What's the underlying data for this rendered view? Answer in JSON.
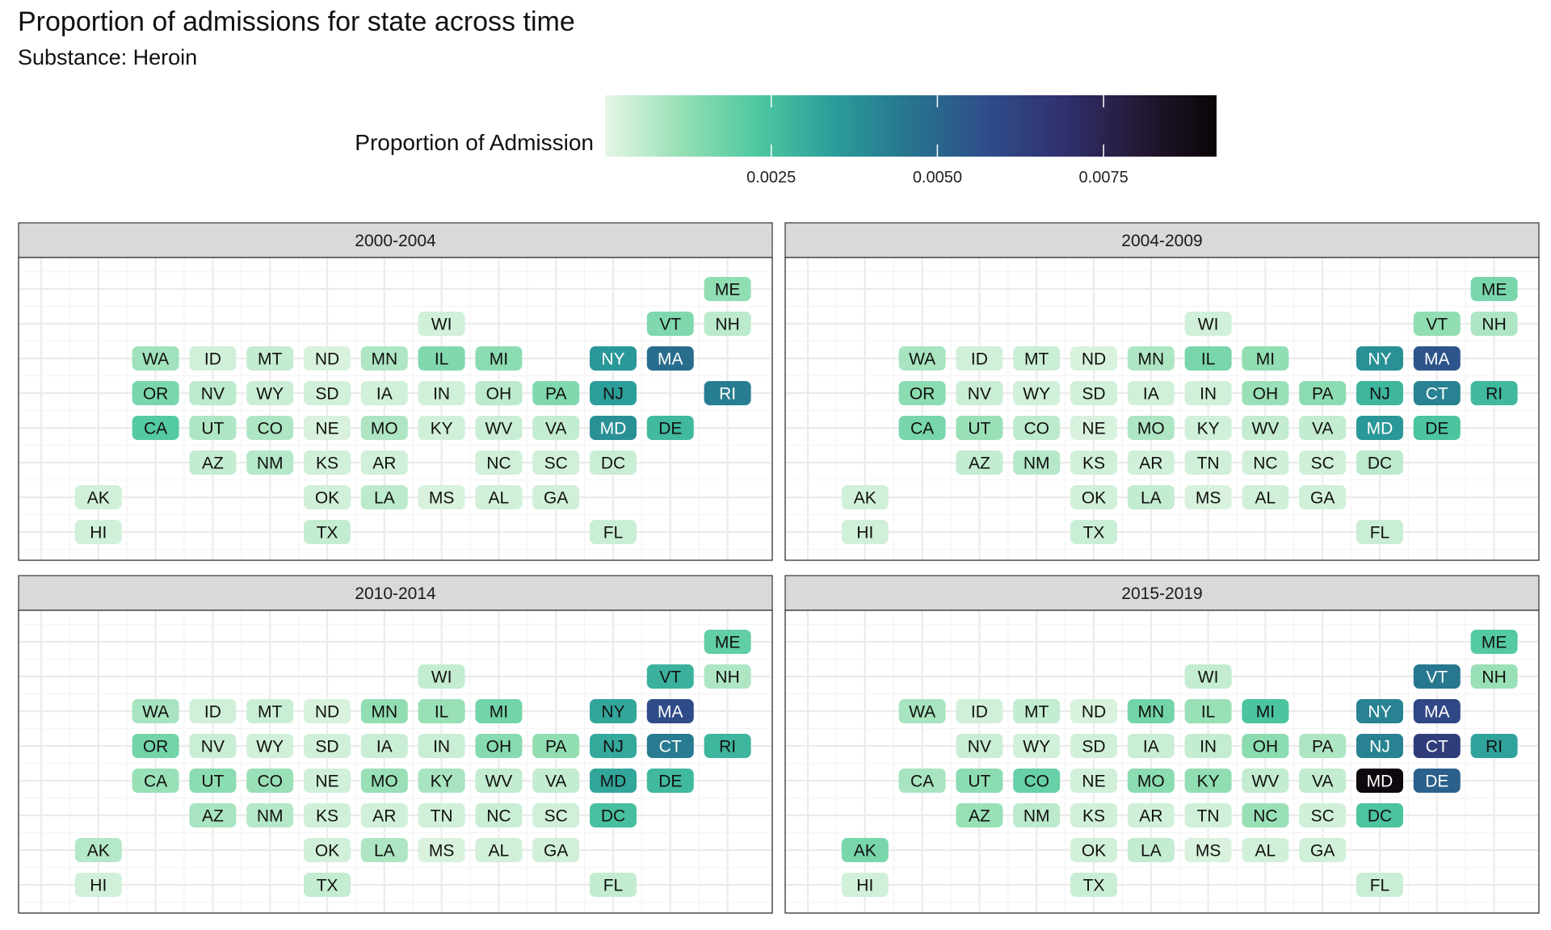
{
  "chart_data": {
    "type": "heatmap",
    "title": "Proportion of admissions for state across time",
    "subtitle": "Substance: Heroin",
    "legend": {
      "title": "Proportion of Admission",
      "position": "top",
      "range": [
        0,
        0.0092
      ],
      "ticks": [
        0.0025,
        0.005,
        0.0075
      ],
      "tick_labels": [
        "0.0025",
        "0.0050",
        "0.0075"
      ],
      "colors": [
        "#e6f6e6",
        "#95dfb4",
        "#4ec8a0",
        "#2a9c9a",
        "#27748e",
        "#2f4d8a",
        "#30306e",
        "#241935",
        "#0b0406"
      ]
    },
    "grid": true,
    "facets": [
      {
        "label": "2000-2004",
        "states": [
          {
            "abbr": "ME",
            "value": 0.0012
          },
          {
            "abbr": "WI",
            "value": 0.0003
          },
          {
            "abbr": "VT",
            "value": 0.0015
          },
          {
            "abbr": "NH",
            "value": 0.0006
          },
          {
            "abbr": "WA",
            "value": 0.001
          },
          {
            "abbr": "ID",
            "value": 0.0003
          },
          {
            "abbr": "MT",
            "value": 0.0005
          },
          {
            "abbr": "ND",
            "value": 0.0002
          },
          {
            "abbr": "MN",
            "value": 0.0008
          },
          {
            "abbr": "IL",
            "value": 0.0015
          },
          {
            "abbr": "MI",
            "value": 0.0013
          },
          {
            "abbr": "NY",
            "value": 0.0036
          },
          {
            "abbr": "MA",
            "value": 0.0048
          },
          {
            "abbr": "OR",
            "value": 0.0016
          },
          {
            "abbr": "NV",
            "value": 0.0006
          },
          {
            "abbr": "WY",
            "value": 0.0004
          },
          {
            "abbr": "SD",
            "value": 0.0003
          },
          {
            "abbr": "IA",
            "value": 0.0003
          },
          {
            "abbr": "IN",
            "value": 0.0003
          },
          {
            "abbr": "OH",
            "value": 0.0006
          },
          {
            "abbr": "PA",
            "value": 0.0015
          },
          {
            "abbr": "NJ",
            "value": 0.0034
          },
          {
            "abbr": "RI",
            "value": 0.0043
          },
          {
            "abbr": "CA",
            "value": 0.0022
          },
          {
            "abbr": "UT",
            "value": 0.0008
          },
          {
            "abbr": "CO",
            "value": 0.0008
          },
          {
            "abbr": "NE",
            "value": 0.0002
          },
          {
            "abbr": "MO",
            "value": 0.0008
          },
          {
            "abbr": "KY",
            "value": 0.0003
          },
          {
            "abbr": "WV",
            "value": 0.0004
          },
          {
            "abbr": "VA",
            "value": 0.0005
          },
          {
            "abbr": "MD",
            "value": 0.0038
          },
          {
            "abbr": "DE",
            "value": 0.0027
          },
          {
            "abbr": "AZ",
            "value": 0.0005
          },
          {
            "abbr": "NM",
            "value": 0.0007
          },
          {
            "abbr": "KS",
            "value": 0.0003
          },
          {
            "abbr": "AR",
            "value": 0.0003
          },
          {
            "abbr": "NC",
            "value": 0.0003
          },
          {
            "abbr": "SC",
            "value": 0.0003
          },
          {
            "abbr": "DC",
            "value": 0.0004
          },
          {
            "abbr": "AK",
            "value": 0.0003
          },
          {
            "abbr": "OK",
            "value": 0.0003
          },
          {
            "abbr": "LA",
            "value": 0.0006
          },
          {
            "abbr": "MS",
            "value": 0.0002
          },
          {
            "abbr": "AL",
            "value": 0.0003
          },
          {
            "abbr": "GA",
            "value": 0.0003
          },
          {
            "abbr": "HI",
            "value": 0.0003
          },
          {
            "abbr": "TX",
            "value": 0.0005
          },
          {
            "abbr": "FL",
            "value": 0.0004
          }
        ]
      },
      {
        "label": "2004-2009",
        "states": [
          {
            "abbr": "ME",
            "value": 0.0016
          },
          {
            "abbr": "WI",
            "value": 0.0003
          },
          {
            "abbr": "VT",
            "value": 0.0012
          },
          {
            "abbr": "NH",
            "value": 0.0008
          },
          {
            "abbr": "WA",
            "value": 0.0009
          },
          {
            "abbr": "ID",
            "value": 0.0003
          },
          {
            "abbr": "MT",
            "value": 0.0004
          },
          {
            "abbr": "ND",
            "value": 0.0002
          },
          {
            "abbr": "MN",
            "value": 0.0008
          },
          {
            "abbr": "IL",
            "value": 0.0016
          },
          {
            "abbr": "MI",
            "value": 0.0012
          },
          {
            "abbr": "NY",
            "value": 0.0038
          },
          {
            "abbr": "MA",
            "value": 0.0055
          },
          {
            "abbr": "OR",
            "value": 0.0013
          },
          {
            "abbr": "NV",
            "value": 0.0004
          },
          {
            "abbr": "WY",
            "value": 0.0003
          },
          {
            "abbr": "SD",
            "value": 0.0003
          },
          {
            "abbr": "IA",
            "value": 0.0003
          },
          {
            "abbr": "IN",
            "value": 0.0003
          },
          {
            "abbr": "OH",
            "value": 0.0011
          },
          {
            "abbr": "PA",
            "value": 0.0013
          },
          {
            "abbr": "NJ",
            "value": 0.0028
          },
          {
            "abbr": "CT",
            "value": 0.0042
          },
          {
            "abbr": "RI",
            "value": 0.0027
          },
          {
            "abbr": "CA",
            "value": 0.0016
          },
          {
            "abbr": "UT",
            "value": 0.0011
          },
          {
            "abbr": "CO",
            "value": 0.0006
          },
          {
            "abbr": "NE",
            "value": 0.0002
          },
          {
            "abbr": "MO",
            "value": 0.0008
          },
          {
            "abbr": "KY",
            "value": 0.0003
          },
          {
            "abbr": "WV",
            "value": 0.0005
          },
          {
            "abbr": "VA",
            "value": 0.0005
          },
          {
            "abbr": "MD",
            "value": 0.0036
          },
          {
            "abbr": "DE",
            "value": 0.0024
          },
          {
            "abbr": "AZ",
            "value": 0.0005
          },
          {
            "abbr": "NM",
            "value": 0.0007
          },
          {
            "abbr": "KS",
            "value": 0.0003
          },
          {
            "abbr": "AR",
            "value": 0.0003
          },
          {
            "abbr": "TN",
            "value": 0.0003
          },
          {
            "abbr": "NC",
            "value": 0.0003
          },
          {
            "abbr": "SC",
            "value": 0.0003
          },
          {
            "abbr": "DC",
            "value": 0.0006
          },
          {
            "abbr": "AK",
            "value": 0.0003
          },
          {
            "abbr": "OK",
            "value": 0.0003
          },
          {
            "abbr": "LA",
            "value": 0.0005
          },
          {
            "abbr": "MS",
            "value": 0.0002
          },
          {
            "abbr": "AL",
            "value": 0.0003
          },
          {
            "abbr": "GA",
            "value": 0.0003
          },
          {
            "abbr": "HI",
            "value": 0.0003
          },
          {
            "abbr": "TX",
            "value": 0.0004
          },
          {
            "abbr": "FL",
            "value": 0.0004
          }
        ]
      },
      {
        "label": "2010-2014",
        "states": [
          {
            "abbr": "ME",
            "value": 0.002
          },
          {
            "abbr": "WI",
            "value": 0.0005
          },
          {
            "abbr": "VT",
            "value": 0.0029
          },
          {
            "abbr": "NH",
            "value": 0.0008
          },
          {
            "abbr": "WA",
            "value": 0.0009
          },
          {
            "abbr": "ID",
            "value": 0.0003
          },
          {
            "abbr": "MT",
            "value": 0.0004
          },
          {
            "abbr": "ND",
            "value": 0.0002
          },
          {
            "abbr": "MN",
            "value": 0.0012
          },
          {
            "abbr": "IL",
            "value": 0.0011
          },
          {
            "abbr": "MI",
            "value": 0.0017
          },
          {
            "abbr": "NY",
            "value": 0.0032
          },
          {
            "abbr": "MA",
            "value": 0.0058
          },
          {
            "abbr": "OR",
            "value": 0.0017
          },
          {
            "abbr": "NV",
            "value": 0.0004
          },
          {
            "abbr": "WY",
            "value": 0.0003
          },
          {
            "abbr": "SD",
            "value": 0.0003
          },
          {
            "abbr": "IA",
            "value": 0.0004
          },
          {
            "abbr": "IN",
            "value": 0.0004
          },
          {
            "abbr": "OH",
            "value": 0.0014
          },
          {
            "abbr": "PA",
            "value": 0.0012
          },
          {
            "abbr": "NJ",
            "value": 0.0031
          },
          {
            "abbr": "CT",
            "value": 0.0044
          },
          {
            "abbr": "RI",
            "value": 0.0028
          },
          {
            "abbr": "CA",
            "value": 0.0011
          },
          {
            "abbr": "UT",
            "value": 0.0013
          },
          {
            "abbr": "CO",
            "value": 0.0011
          },
          {
            "abbr": "NE",
            "value": 0.0003
          },
          {
            "abbr": "MO",
            "value": 0.0011
          },
          {
            "abbr": "KY",
            "value": 0.0009
          },
          {
            "abbr": "WV",
            "value": 0.0005
          },
          {
            "abbr": "VA",
            "value": 0.0005
          },
          {
            "abbr": "MD",
            "value": 0.0032
          },
          {
            "abbr": "DE",
            "value": 0.0027
          },
          {
            "abbr": "AZ",
            "value": 0.0009
          },
          {
            "abbr": "NM",
            "value": 0.0007
          },
          {
            "abbr": "KS",
            "value": 0.0003
          },
          {
            "abbr": "AR",
            "value": 0.0003
          },
          {
            "abbr": "TN",
            "value": 0.0003
          },
          {
            "abbr": "NC",
            "value": 0.0004
          },
          {
            "abbr": "SC",
            "value": 0.0003
          },
          {
            "abbr": "DC",
            "value": 0.0025
          },
          {
            "abbr": "AK",
            "value": 0.0007
          },
          {
            "abbr": "OK",
            "value": 0.0003
          },
          {
            "abbr": "LA",
            "value": 0.0008
          },
          {
            "abbr": "MS",
            "value": 0.0002
          },
          {
            "abbr": "AL",
            "value": 0.0003
          },
          {
            "abbr": "GA",
            "value": 0.0003
          },
          {
            "abbr": "HI",
            "value": 0.0003
          },
          {
            "abbr": "TX",
            "value": 0.0005
          },
          {
            "abbr": "FL",
            "value": 0.0005
          }
        ]
      },
      {
        "label": "2015-2019",
        "states": [
          {
            "abbr": "ME",
            "value": 0.0022
          },
          {
            "abbr": "WI",
            "value": 0.0005
          },
          {
            "abbr": "VT",
            "value": 0.0045
          },
          {
            "abbr": "NH",
            "value": 0.0011
          },
          {
            "abbr": "WA",
            "value": 0.0009
          },
          {
            "abbr": "ID",
            "value": 0.0003
          },
          {
            "abbr": "MT",
            "value": 0.0005
          },
          {
            "abbr": "ND",
            "value": 0.0002
          },
          {
            "abbr": "MN",
            "value": 0.0017
          },
          {
            "abbr": "IL",
            "value": 0.0011
          },
          {
            "abbr": "MI",
            "value": 0.0024
          },
          {
            "abbr": "NY",
            "value": 0.0042
          },
          {
            "abbr": "MA",
            "value": 0.006
          },
          {
            "abbr": "NV",
            "value": 0.0004
          },
          {
            "abbr": "WY",
            "value": 0.0003
          },
          {
            "abbr": "SD",
            "value": 0.0003
          },
          {
            "abbr": "IA",
            "value": 0.0004
          },
          {
            "abbr": "IN",
            "value": 0.0005
          },
          {
            "abbr": "OH",
            "value": 0.0013
          },
          {
            "abbr": "PA",
            "value": 0.0008
          },
          {
            "abbr": "NJ",
            "value": 0.0042
          },
          {
            "abbr": "CT",
            "value": 0.0064
          },
          {
            "abbr": "RI",
            "value": 0.0033
          },
          {
            "abbr": "CA",
            "value": 0.0009
          },
          {
            "abbr": "UT",
            "value": 0.0013
          },
          {
            "abbr": "CO",
            "value": 0.0019
          },
          {
            "abbr": "NE",
            "value": 0.0003
          },
          {
            "abbr": "MO",
            "value": 0.0013
          },
          {
            "abbr": "KY",
            "value": 0.0012
          },
          {
            "abbr": "WV",
            "value": 0.0005
          },
          {
            "abbr": "VA",
            "value": 0.0005
          },
          {
            "abbr": "MD",
            "value": 0.009
          },
          {
            "abbr": "DE",
            "value": 0.0052
          },
          {
            "abbr": "AZ",
            "value": 0.0011
          },
          {
            "abbr": "NM",
            "value": 0.0006
          },
          {
            "abbr": "KS",
            "value": 0.0003
          },
          {
            "abbr": "AR",
            "value": 0.0003
          },
          {
            "abbr": "TN",
            "value": 0.0003
          },
          {
            "abbr": "NC",
            "value": 0.0011
          },
          {
            "abbr": "SC",
            "value": 0.0003
          },
          {
            "abbr": "DC",
            "value": 0.0024
          },
          {
            "abbr": "AK",
            "value": 0.0016
          },
          {
            "abbr": "OK",
            "value": 0.0003
          },
          {
            "abbr": "LA",
            "value": 0.0005
          },
          {
            "abbr": "MS",
            "value": 0.0002
          },
          {
            "abbr": "AL",
            "value": 0.0003
          },
          {
            "abbr": "GA",
            "value": 0.0003
          },
          {
            "abbr": "HI",
            "value": 0.0003
          },
          {
            "abbr": "TX",
            "value": 0.0004
          },
          {
            "abbr": "FL",
            "value": 0.0004
          }
        ]
      }
    ]
  }
}
